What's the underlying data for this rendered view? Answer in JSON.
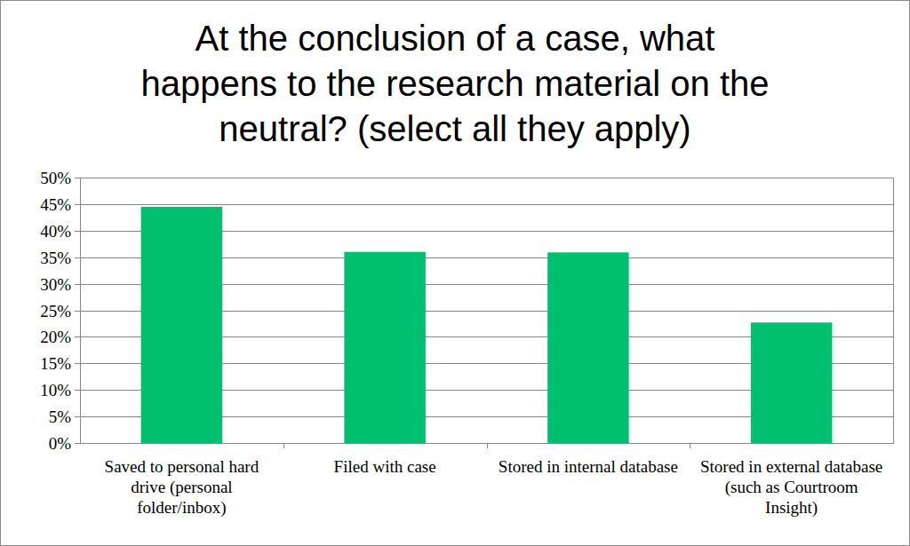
{
  "chart_data": {
    "type": "bar",
    "title": "At the conclusion of a case, what happens to the research material on the neutral? (select all they apply)",
    "categories": [
      "Saved to personal hard drive (personal folder/inbox)",
      "Filed with case",
      "Stored in internal database",
      "Stored in external database (such as Courtroom Insight)"
    ],
    "values": [
      44.5,
      36,
      35.9,
      22.7
    ],
    "color": "#00c06f",
    "ylim": [
      0,
      50
    ],
    "yticks": [
      {
        "value": 0,
        "label": "0%"
      },
      {
        "value": 5,
        "label": "5%"
      },
      {
        "value": 10,
        "label": "10%"
      },
      {
        "value": 15,
        "label": "15%"
      },
      {
        "value": 20,
        "label": "20%"
      },
      {
        "value": 25,
        "label": "25%"
      },
      {
        "value": 30,
        "label": "30%"
      },
      {
        "value": 35,
        "label": "35%"
      },
      {
        "value": 40,
        "label": "40%"
      },
      {
        "value": 45,
        "label": "45%"
      },
      {
        "value": 50,
        "label": "50%"
      }
    ],
    "grid": true
  }
}
